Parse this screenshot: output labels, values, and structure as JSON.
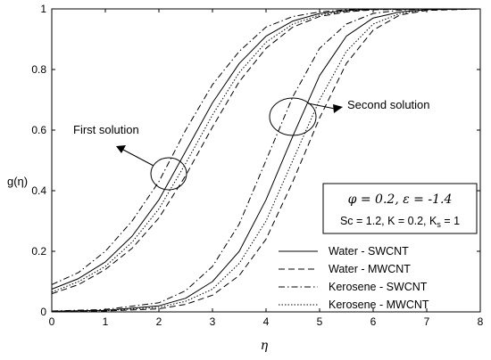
{
  "chart_data": {
    "type": "line",
    "xlabel": "η",
    "ylabel": "g(η)",
    "xlim": [
      0,
      8
    ],
    "ylim": [
      0,
      1
    ],
    "xticks": [
      "0",
      "1",
      "2",
      "3",
      "4",
      "5",
      "6",
      "7",
      "8"
    ],
    "yticks": [
      "0",
      "0.2",
      "0.4",
      "0.6",
      "0.8",
      "1"
    ],
    "grid": false,
    "legend_position": "bottom-right",
    "param_box": {
      "line1": "φ = 0.2, ε = -1.4",
      "line2_prefix": "Sc = 1.2, K = 0.2, K",
      "line2_sub": "s",
      "line2_suffix": " = 1"
    },
    "annotations": [
      {
        "text": "First solution",
        "target_x": 2.05,
        "target_y": 0.45
      },
      {
        "text": "Second solution",
        "target_x": 4.45,
        "target_y": 0.62
      }
    ],
    "series": [
      {
        "name": "Water - SWCNT",
        "style": "solid",
        "first_solution": {
          "x": [
            0,
            0.5,
            1,
            1.5,
            2,
            2.5,
            3,
            3.5,
            4,
            4.5,
            5,
            5.5,
            6,
            7,
            8
          ],
          "y": [
            0.075,
            0.11,
            0.165,
            0.25,
            0.37,
            0.53,
            0.69,
            0.82,
            0.91,
            0.96,
            0.985,
            0.995,
            0.999,
            1,
            1
          ]
        },
        "second_solution": {
          "x": [
            0,
            1,
            2,
            2.5,
            3,
            3.5,
            4,
            4.5,
            5,
            5.5,
            6,
            6.5,
            7,
            8
          ],
          "y": [
            0.002,
            0.005,
            0.02,
            0.045,
            0.1,
            0.2,
            0.37,
            0.58,
            0.78,
            0.91,
            0.97,
            0.99,
            0.998,
            1
          ]
        }
      },
      {
        "name": "Water - MWCNT",
        "style": "dashed",
        "first_solution": {
          "x": [
            0,
            0.5,
            1,
            1.5,
            2,
            2.5,
            3,
            3.5,
            4,
            4.5,
            5,
            5.5,
            6,
            7,
            8
          ],
          "y": [
            0.06,
            0.09,
            0.14,
            0.21,
            0.31,
            0.45,
            0.61,
            0.76,
            0.87,
            0.94,
            0.975,
            0.99,
            0.997,
            1,
            1
          ]
        },
        "second_solution": {
          "x": [
            0,
            1,
            2,
            2.5,
            3,
            3.5,
            4,
            4.5,
            5,
            5.5,
            6,
            6.5,
            7,
            8
          ],
          "y": [
            0.001,
            0.003,
            0.01,
            0.025,
            0.055,
            0.12,
            0.24,
            0.43,
            0.64,
            0.82,
            0.93,
            0.98,
            0.995,
            1
          ]
        }
      },
      {
        "name": "Kerosene - SWCNT",
        "style": "dashdot",
        "first_solution": {
          "x": [
            0,
            0.5,
            1,
            1.5,
            2,
            2.5,
            3,
            3.5,
            4,
            4.5,
            5,
            5.5,
            6,
            7,
            8
          ],
          "y": [
            0.09,
            0.13,
            0.2,
            0.3,
            0.43,
            0.6,
            0.75,
            0.86,
            0.94,
            0.975,
            0.99,
            0.997,
            1,
            1,
            1
          ]
        },
        "second_solution": {
          "x": [
            0,
            1,
            2,
            2.5,
            3,
            3.5,
            4,
            4.5,
            5,
            5.5,
            6,
            6.5,
            7,
            8
          ],
          "y": [
            0.003,
            0.008,
            0.03,
            0.07,
            0.15,
            0.29,
            0.5,
            0.71,
            0.87,
            0.95,
            0.985,
            0.996,
            1,
            1
          ]
        }
      },
      {
        "name": "Kerosene - MWCNT",
        "style": "dotted",
        "first_solution": {
          "x": [
            0,
            0.5,
            1,
            1.5,
            2,
            2.5,
            3,
            3.5,
            4,
            4.5,
            5,
            5.5,
            6,
            7,
            8
          ],
          "y": [
            0.065,
            0.1,
            0.15,
            0.23,
            0.34,
            0.49,
            0.65,
            0.79,
            0.89,
            0.95,
            0.98,
            0.993,
            0.998,
            1,
            1
          ]
        },
        "second_solution": {
          "x": [
            0,
            1,
            2,
            2.5,
            3,
            3.5,
            4,
            4.5,
            5,
            5.5,
            6,
            6.5,
            7,
            8
          ],
          "y": [
            0.0015,
            0.004,
            0.015,
            0.035,
            0.075,
            0.16,
            0.3,
            0.5,
            0.7,
            0.86,
            0.95,
            0.985,
            0.997,
            1
          ]
        }
      }
    ]
  }
}
